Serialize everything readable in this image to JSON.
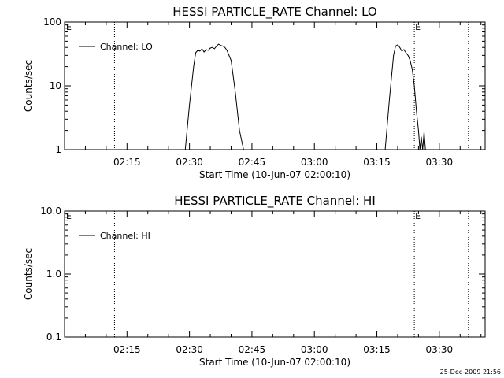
{
  "footer": {
    "timestamp": "25-Dec-2009 21:56"
  },
  "chart_data": [
    {
      "type": "line",
      "title": "HESSI PARTICLE_RATE Channel: LO",
      "xlabel": "Start Time (10-Jun-07 02:00:10)",
      "ylabel": "Counts/sec",
      "yscale": "log",
      "xlim": [
        "02:00",
        "03:41"
      ],
      "ylim": [
        1,
        100
      ],
      "x_ticks": [
        "02:15",
        "02:30",
        "02:45",
        "03:00",
        "03:15",
        "03:30"
      ],
      "y_ticks": [
        "1",
        "10",
        "100"
      ],
      "legend": {
        "position": "top-left",
        "entries": [
          "Channel: LO"
        ]
      },
      "vertical_markers": [
        {
          "x": "02:12",
          "style": "dotted",
          "label": ""
        },
        {
          "x": "03:24",
          "style": "dotted",
          "label": "E"
        },
        {
          "x": "03:37",
          "style": "dotted",
          "label": ""
        }
      ],
      "corner_label": "E",
      "grid": false,
      "series": [
        {
          "name": "Channel: LO",
          "x": [
            "02:29",
            "02:30",
            "02:31",
            "02:31:30",
            "02:32",
            "02:32:30",
            "02:33",
            "02:33:30",
            "02:34",
            "02:34:30",
            "02:35",
            "02:35:30",
            "02:36",
            "02:36:30",
            "02:37",
            "02:37:30",
            "02:38",
            "02:38:30",
            "02:39",
            "02:40",
            "02:41",
            "02:42",
            "02:43"
          ],
          "values": [
            1,
            5,
            20,
            33,
            36,
            35,
            38,
            34,
            37,
            36,
            39,
            40,
            38,
            42,
            45,
            43,
            42,
            40,
            36,
            25,
            8,
            2,
            1
          ]
        },
        {
          "name": "Channel: LO",
          "x": [
            "03:17",
            "03:18",
            "03:19",
            "03:19:30",
            "03:20",
            "03:20:30",
            "03:21",
            "03:21:30",
            "03:22",
            "03:22:30",
            "03:23",
            "03:23:30",
            "03:24",
            "03:24:30",
            "03:25",
            "03:25:20",
            "03:25:40",
            "03:26",
            "03:26:20",
            "03:26:40"
          ],
          "values": [
            1,
            6,
            30,
            42,
            44,
            40,
            35,
            37,
            33,
            30,
            25,
            18,
            10,
            4,
            2,
            1,
            1.6,
            1,
            1.9,
            1
          ]
        }
      ]
    },
    {
      "type": "line",
      "title": "HESSI PARTICLE_RATE Channel: HI",
      "xlabel": "Start Time (10-Jun-07 02:00:10)",
      "ylabel": "Counts/sec",
      "yscale": "log",
      "xlim": [
        "02:00",
        "03:41"
      ],
      "ylim": [
        0.1,
        10
      ],
      "x_ticks": [
        "02:15",
        "02:30",
        "02:45",
        "03:00",
        "03:15",
        "03:30"
      ],
      "y_ticks": [
        "0.1",
        "1.0",
        "10.0"
      ],
      "legend": {
        "position": "top-left",
        "entries": [
          "Channel: HI"
        ]
      },
      "vertical_markers": [
        {
          "x": "02:12",
          "style": "dotted",
          "label": ""
        },
        {
          "x": "03:24",
          "style": "dotted",
          "label": "E"
        },
        {
          "x": "03:37",
          "style": "dotted",
          "label": ""
        }
      ],
      "corner_label": "E",
      "grid": false,
      "series": [
        {
          "name": "Channel: HI",
          "x": [],
          "values": []
        }
      ]
    }
  ]
}
